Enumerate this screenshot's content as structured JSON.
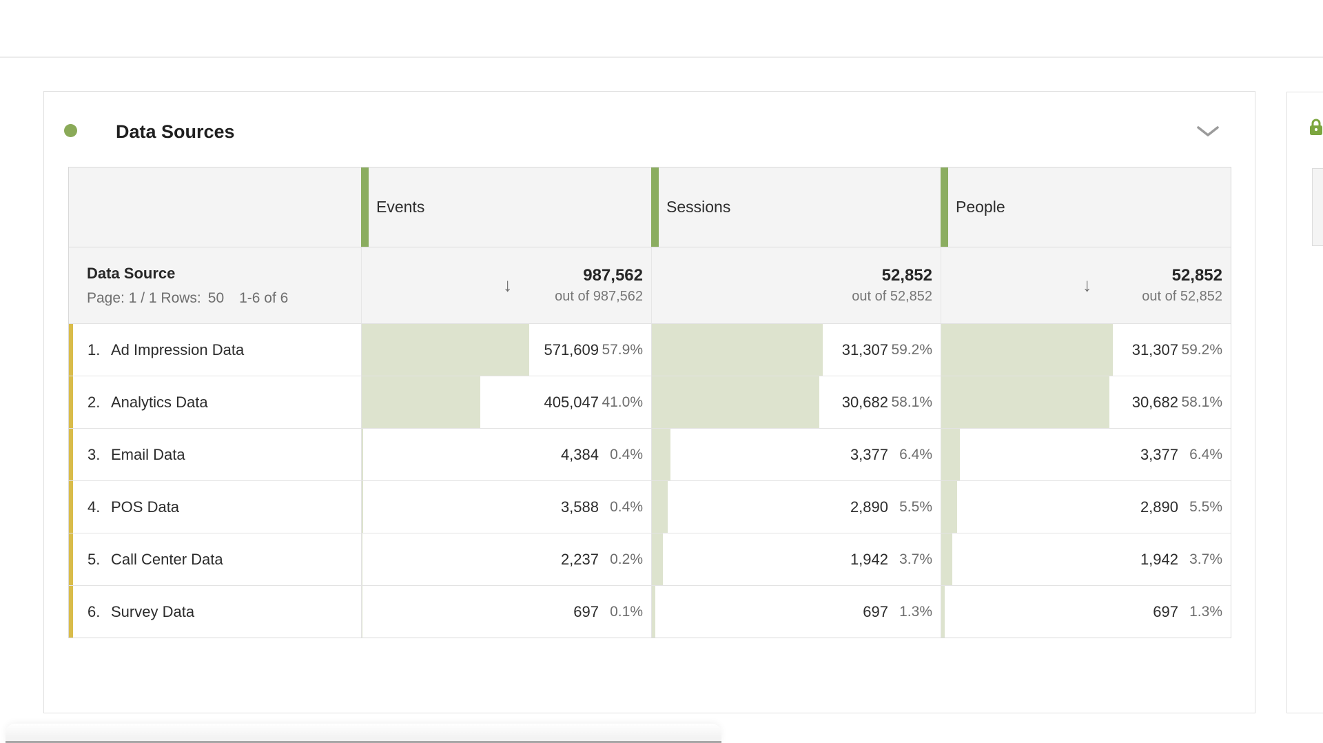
{
  "panel": {
    "title": "Data Sources"
  },
  "colors": {
    "accent_green": "#8bad60",
    "dot_green": "#8aaa58",
    "lock_green": "#7ca63f",
    "row_stripe_yellow": "#d9bc4a",
    "bar_fill": "#dde3ce",
    "header_bg": "#f4f4f4"
  },
  "table": {
    "columns": [
      {
        "label": "Events"
      },
      {
        "label": "Sessions"
      },
      {
        "label": "People"
      }
    ],
    "dimension": {
      "title": "Data Source",
      "page_label": "Page: 1 / 1 Rows:",
      "rows_value": "50",
      "range_label": "1-6 of 6"
    },
    "totals": [
      {
        "value": "987,562",
        "out_of": "out of 987,562",
        "sort_arrow": true,
        "arrow_glyph": "↓"
      },
      {
        "value": "52,852",
        "out_of": "out of 52,852",
        "sort_arrow": false,
        "arrow_glyph": "↓"
      },
      {
        "value": "52,852",
        "out_of": "out of 52,852",
        "sort_arrow": true,
        "arrow_glyph": "↓"
      }
    ],
    "rows": [
      {
        "index": "1.",
        "name": "Ad Impression Data",
        "metrics": [
          {
            "value": "571,609",
            "pct": "57.9%",
            "bar": 57.9
          },
          {
            "value": "31,307",
            "pct": "59.2%",
            "bar": 59.2
          },
          {
            "value": "31,307",
            "pct": "59.2%",
            "bar": 59.2
          }
        ]
      },
      {
        "index": "2.",
        "name": "Analytics Data",
        "metrics": [
          {
            "value": "405,047",
            "pct": "41.0%",
            "bar": 41.0
          },
          {
            "value": "30,682",
            "pct": "58.1%",
            "bar": 58.1
          },
          {
            "value": "30,682",
            "pct": "58.1%",
            "bar": 58.1
          }
        ]
      },
      {
        "index": "3.",
        "name": "Email Data",
        "metrics": [
          {
            "value": "4,384",
            "pct": "0.4%",
            "bar": 0.4
          },
          {
            "value": "3,377",
            "pct": "6.4%",
            "bar": 6.4
          },
          {
            "value": "3,377",
            "pct": "6.4%",
            "bar": 6.4
          }
        ]
      },
      {
        "index": "4.",
        "name": "POS Data",
        "metrics": [
          {
            "value": "3,588",
            "pct": "0.4%",
            "bar": 0.4
          },
          {
            "value": "2,890",
            "pct": "5.5%",
            "bar": 5.5
          },
          {
            "value": "2,890",
            "pct": "5.5%",
            "bar": 5.5
          }
        ]
      },
      {
        "index": "5.",
        "name": "Call Center Data",
        "metrics": [
          {
            "value": "2,237",
            "pct": "0.2%",
            "bar": 0.2
          },
          {
            "value": "1,942",
            "pct": "3.7%",
            "bar": 3.7
          },
          {
            "value": "1,942",
            "pct": "3.7%",
            "bar": 3.7
          }
        ]
      },
      {
        "index": "6.",
        "name": "Survey Data",
        "metrics": [
          {
            "value": "697",
            "pct": "0.1%",
            "bar": 0.1
          },
          {
            "value": "697",
            "pct": "1.3%",
            "bar": 1.3
          },
          {
            "value": "697",
            "pct": "1.3%",
            "bar": 1.3
          }
        ]
      }
    ]
  }
}
